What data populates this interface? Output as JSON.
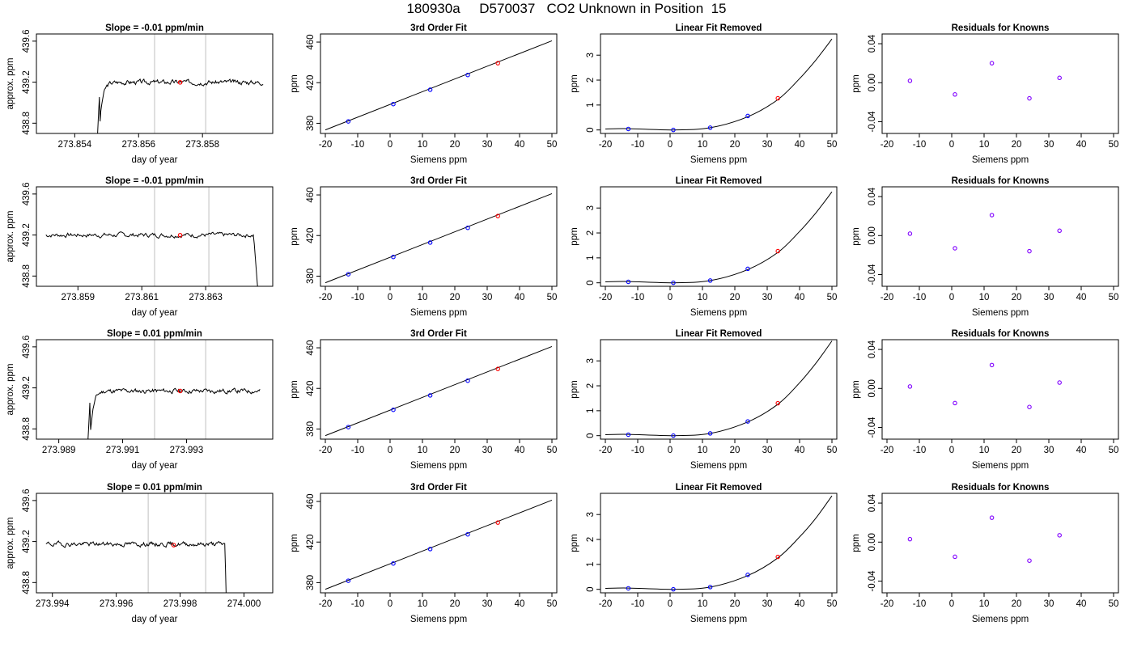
{
  "header": {
    "title": "180930a     D570037   CO2 Unknown in Position  15"
  },
  "colors": {
    "line": "#000000",
    "known_pt": "#0000ff",
    "unknown_pt": "#ff0000",
    "resid_pt": "#8000ff",
    "vline": "#bfbfbf"
  },
  "chart_data": [
    {
      "type": "line",
      "title": "Slope =  -0.01  ppm/min",
      "xlabel": "day of year",
      "ylabel": "approx. ppm",
      "xlim": [
        273.8528,
        273.8602
      ],
      "ylim": [
        438.7,
        439.67
      ],
      "xticks": [
        273.854,
        273.856,
        273.858
      ],
      "xtick_labels": [
        "273.854",
        "273.856",
        "273.858"
      ],
      "yticks": [
        438.8,
        439.2,
        439.6
      ],
      "ytick_labels": [
        "438.8",
        "439.2",
        "439.6"
      ],
      "vlines": [
        273.8565,
        273.8581
      ],
      "marker": [
        273.8573,
        439.198
      ],
      "trace": {
        "start": 273.8547,
        "end": 273.8599,
        "shape": "rise",
        "drop_at": null,
        "level": 439.2,
        "seed": 3
      }
    },
    {
      "type": "line",
      "title": "3rd Order Fit",
      "xlabel": "Siemens ppm",
      "ylabel": "ppm",
      "xlim": [
        -21.5,
        51.5
      ],
      "ylim": [
        370,
        468
      ],
      "xticks": [
        -20,
        -10,
        0,
        10,
        20,
        30,
        40,
        50
      ],
      "xtick_labels": [
        "-20",
        "-10",
        "0",
        "10",
        "20",
        "30",
        "40",
        "50"
      ],
      "yticks": [
        380,
        420,
        460
      ],
      "ytick_labels": [
        "380",
        "420",
        "460"
      ],
      "x": [
        -12.9,
        1.0,
        12.4,
        24.0,
        33.3
      ],
      "y": [
        381.9,
        398.9,
        413.1,
        427.6,
        439.2
      ],
      "fit_x": [
        -20,
        50
      ],
      "fit_y": [
        373.5,
        461.3
      ],
      "unknown_index": 4
    },
    {
      "type": "line",
      "title": "Linear Fit Removed",
      "xlabel": "Siemens ppm",
      "ylabel": "ppm",
      "xlim": [
        -21.5,
        51.5
      ],
      "ylim": [
        -0.14,
        3.85
      ],
      "xticks": [
        -20,
        -10,
        0,
        10,
        20,
        30,
        40,
        50
      ],
      "xtick_labels": [
        "-20",
        "-10",
        "0",
        "10",
        "20",
        "30",
        "40",
        "50"
      ],
      "yticks": [
        0,
        1,
        2,
        3
      ],
      "ytick_labels": [
        "0",
        "1",
        "2",
        "3"
      ],
      "x": [
        -12.9,
        1.0,
        12.4,
        24.0,
        33.3
      ],
      "y": [
        0.04,
        0.0,
        0.09,
        0.56,
        1.27
      ],
      "curve_x": [
        -20,
        -12.9,
        1.0,
        12.4,
        24.0,
        33.3,
        40,
        45,
        50
      ],
      "curve_y": [
        0.04,
        0.05,
        0.0,
        0.09,
        0.53,
        1.22,
        2.06,
        2.8,
        3.65
      ],
      "unknown_index": 4
    },
    {
      "type": "scatter",
      "title": "Residuals for Knowns",
      "xlabel": "Siemens ppm",
      "ylabel": "ppm",
      "xlim": [
        -21.5,
        51.5
      ],
      "ylim": [
        -0.052,
        0.05
      ],
      "xticks": [
        -20,
        -10,
        0,
        10,
        20,
        30,
        40,
        50
      ],
      "xtick_labels": [
        "-20",
        "-10",
        "0",
        "10",
        "20",
        "30",
        "40",
        "50"
      ],
      "yticks": [
        -0.04,
        0.0,
        0.04
      ],
      "ytick_labels": [
        "-0.04",
        "0.00",
        "0.04"
      ],
      "x": [
        -12.9,
        1.0,
        12.4,
        24.0,
        33.3
      ],
      "y": [
        0.002,
        -0.012,
        0.02,
        -0.016,
        0.005
      ]
    },
    {
      "type": "line",
      "title": "Slope =  -0.01  ppm/min",
      "xlabel": "day of year",
      "ylabel": "approx. ppm",
      "xlim": [
        273.8577,
        273.8651
      ],
      "ylim": [
        438.7,
        439.67
      ],
      "xticks": [
        273.859,
        273.861,
        273.863
      ],
      "xtick_labels": [
        "273.859",
        "273.861",
        "273.863"
      ],
      "yticks": [
        438.8,
        439.2,
        439.6
      ],
      "ytick_labels": [
        "438.8",
        "439.2",
        "439.6"
      ],
      "vlines": [
        273.8614,
        273.8631
      ],
      "marker": [
        273.8622,
        439.198
      ],
      "trace": {
        "start": 273.858,
        "end": 273.8648,
        "shape": "drop",
        "drop_at": 273.8645,
        "level": 439.2,
        "seed": 7
      }
    },
    {
      "type": "line",
      "title": "3rd Order Fit",
      "xlabel": "Siemens ppm",
      "ylabel": "ppm",
      "xlim": [
        -21.5,
        51.5
      ],
      "ylim": [
        370,
        468
      ],
      "xticks": [
        -20,
        -10,
        0,
        10,
        20,
        30,
        40,
        50
      ],
      "xtick_labels": [
        "-20",
        "-10",
        "0",
        "10",
        "20",
        "30",
        "40",
        "50"
      ],
      "yticks": [
        380,
        420,
        460
      ],
      "ytick_labels": [
        "380",
        "420",
        "460"
      ],
      "x": [
        -12.9,
        1.0,
        12.4,
        24.0,
        33.3
      ],
      "y": [
        381.9,
        398.9,
        413.1,
        427.6,
        439.2
      ],
      "fit_x": [
        -20,
        50
      ],
      "fit_y": [
        373.5,
        461.3
      ],
      "unknown_index": 4
    },
    {
      "type": "line",
      "title": "Linear Fit Removed",
      "xlabel": "Siemens ppm",
      "ylabel": "ppm",
      "xlim": [
        -21.5,
        51.5
      ],
      "ylim": [
        -0.14,
        3.85
      ],
      "xticks": [
        -20,
        -10,
        0,
        10,
        20,
        30,
        40,
        50
      ],
      "xtick_labels": [
        "-20",
        "-10",
        "0",
        "10",
        "20",
        "30",
        "40",
        "50"
      ],
      "yticks": [
        0,
        1,
        2,
        3
      ],
      "ytick_labels": [
        "0",
        "1",
        "2",
        "3"
      ],
      "x": [
        -12.9,
        1.0,
        12.4,
        24.0,
        33.3
      ],
      "y": [
        0.04,
        0.0,
        0.09,
        0.56,
        1.27
      ],
      "curve_x": [
        -20,
        -12.9,
        1.0,
        12.4,
        24.0,
        33.3,
        40,
        45,
        50
      ],
      "curve_y": [
        0.04,
        0.05,
        0.0,
        0.09,
        0.53,
        1.22,
        2.06,
        2.8,
        3.65
      ],
      "unknown_index": 4
    },
    {
      "type": "scatter",
      "title": "Residuals for Knowns",
      "xlabel": "Siemens ppm",
      "ylabel": "ppm",
      "xlim": [
        -21.5,
        51.5
      ],
      "ylim": [
        -0.052,
        0.05
      ],
      "xticks": [
        -20,
        -10,
        0,
        10,
        20,
        30,
        40,
        50
      ],
      "xtick_labels": [
        "-20",
        "-10",
        "0",
        "10",
        "20",
        "30",
        "40",
        "50"
      ],
      "yticks": [
        -0.04,
        0.0,
        0.04
      ],
      "ytick_labels": [
        "-0.04",
        "0.00",
        "0.04"
      ],
      "x": [
        -12.9,
        1.0,
        12.4,
        24.0,
        33.3
      ],
      "y": [
        0.002,
        -0.013,
        0.021,
        -0.016,
        0.005
      ]
    },
    {
      "type": "line",
      "title": "Slope =  0.01  ppm/min",
      "xlabel": "day of year",
      "ylabel": "approx. ppm",
      "xlim": [
        273.9883,
        273.9957
      ],
      "ylim": [
        438.7,
        439.67
      ],
      "xticks": [
        273.989,
        273.991,
        273.993
      ],
      "xtick_labels": [
        "273.989",
        "273.991",
        "273.993"
      ],
      "yticks": [
        438.8,
        439.2,
        439.6
      ],
      "ytick_labels": [
        "438.8",
        "439.2",
        "439.6"
      ],
      "vlines": [
        273.992,
        273.9936
      ],
      "marker": [
        273.9928,
        439.17
      ],
      "trace": {
        "start": 273.9899,
        "end": 273.9953,
        "shape": "rise",
        "drop_at": null,
        "level": 439.17,
        "seed": 11
      }
    },
    {
      "type": "line",
      "title": "3rd Order Fit",
      "xlabel": "Siemens ppm",
      "ylabel": "ppm",
      "xlim": [
        -21.5,
        51.5
      ],
      "ylim": [
        370,
        468
      ],
      "xticks": [
        -20,
        -10,
        0,
        10,
        20,
        30,
        40,
        50
      ],
      "xtick_labels": [
        "-20",
        "-10",
        "0",
        "10",
        "20",
        "30",
        "40",
        "50"
      ],
      "yticks": [
        380,
        420,
        460
      ],
      "ytick_labels": [
        "380",
        "420",
        "460"
      ],
      "x": [
        -12.9,
        1.0,
        12.4,
        24.0,
        33.3
      ],
      "y": [
        381.9,
        398.9,
        413.1,
        427.6,
        439.2
      ],
      "fit_x": [
        -20,
        50
      ],
      "fit_y": [
        373.5,
        461.3
      ],
      "unknown_index": 4
    },
    {
      "type": "line",
      "title": "Linear Fit Removed",
      "xlabel": "Siemens ppm",
      "ylabel": "ppm",
      "xlim": [
        -21.5,
        51.5
      ],
      "ylim": [
        -0.14,
        3.85
      ],
      "xticks": [
        -20,
        -10,
        0,
        10,
        20,
        30,
        40,
        50
      ],
      "xtick_labels": [
        "-20",
        "-10",
        "0",
        "10",
        "20",
        "30",
        "40",
        "50"
      ],
      "yticks": [
        0,
        1,
        2,
        3
      ],
      "ytick_labels": [
        "0",
        "1",
        "2",
        "3"
      ],
      "x": [
        -12.9,
        1.0,
        12.4,
        24.0,
        33.3
      ],
      "y": [
        0.04,
        0.0,
        0.09,
        0.57,
        1.3
      ],
      "curve_x": [
        -20,
        -12.9,
        1.0,
        12.4,
        24.0,
        33.3,
        40,
        45,
        50
      ],
      "curve_y": [
        0.04,
        0.05,
        0.0,
        0.09,
        0.55,
        1.26,
        2.12,
        2.9,
        3.8
      ],
      "unknown_index": 4
    },
    {
      "type": "scatter",
      "title": "Residuals for Knowns",
      "xlabel": "Siemens ppm",
      "ylabel": "ppm",
      "xlim": [
        -21.5,
        51.5
      ],
      "ylim": [
        -0.052,
        0.05
      ],
      "xticks": [
        -20,
        -10,
        0,
        10,
        20,
        30,
        40,
        50
      ],
      "xtick_labels": [
        "-20",
        "-10",
        "0",
        "10",
        "20",
        "30",
        "40",
        "50"
      ],
      "yticks": [
        -0.04,
        0.0,
        0.04
      ],
      "ytick_labels": [
        "-0.04",
        "0.00",
        "0.04"
      ],
      "x": [
        -12.9,
        1.0,
        12.4,
        24.0,
        33.3
      ],
      "y": [
        0.002,
        -0.015,
        0.024,
        -0.019,
        0.006
      ]
    },
    {
      "type": "line",
      "title": "Slope =  0.01  ppm/min",
      "xlabel": "day of year",
      "ylabel": "approx. ppm",
      "xlim": [
        273.9935,
        274.0009
      ],
      "ylim": [
        438.7,
        439.67
      ],
      "xticks": [
        273.994,
        273.996,
        273.998,
        274.0
      ],
      "xtick_labels": [
        "273.994",
        "273.996",
        "273.998",
        "274.000"
      ],
      "yticks": [
        438.8,
        439.2,
        439.6
      ],
      "ytick_labels": [
        "438.8",
        "439.2",
        "439.6"
      ],
      "vlines": [
        273.997,
        273.9988
      ],
      "marker": [
        273.9978,
        439.165
      ],
      "trace": {
        "start": 273.9938,
        "end": 273.9995,
        "shape": "drop",
        "drop_at": 273.9994,
        "level": 439.175,
        "seed": 19
      }
    },
    {
      "type": "line",
      "title": "3rd Order Fit",
      "xlabel": "Siemens ppm",
      "ylabel": "ppm",
      "xlim": [
        -21.5,
        51.5
      ],
      "ylim": [
        370,
        468
      ],
      "xticks": [
        -20,
        -10,
        0,
        10,
        20,
        30,
        40,
        50
      ],
      "xtick_labels": [
        "-20",
        "-10",
        "0",
        "10",
        "20",
        "30",
        "40",
        "50"
      ],
      "yticks": [
        380,
        420,
        460
      ],
      "ytick_labels": [
        "380",
        "420",
        "460"
      ],
      "x": [
        -12.9,
        1.0,
        12.4,
        24.0,
        33.3
      ],
      "y": [
        381.9,
        398.9,
        413.1,
        427.6,
        439.2
      ],
      "fit_x": [
        -20,
        50
      ],
      "fit_y": [
        373.5,
        461.3
      ],
      "unknown_index": 4
    },
    {
      "type": "line",
      "title": "Linear Fit Removed",
      "xlabel": "Siemens ppm",
      "ylabel": "ppm",
      "xlim": [
        -21.5,
        51.5
      ],
      "ylim": [
        -0.14,
        3.85
      ],
      "xticks": [
        -20,
        -10,
        0,
        10,
        20,
        30,
        40,
        50
      ],
      "xtick_labels": [
        "-20",
        "-10",
        "0",
        "10",
        "20",
        "30",
        "40",
        "50"
      ],
      "yticks": [
        0,
        1,
        2,
        3
      ],
      "ytick_labels": [
        "0",
        "1",
        "2",
        "3"
      ],
      "x": [
        -12.9,
        1.0,
        12.4,
        24.0,
        33.3
      ],
      "y": [
        0.04,
        0.0,
        0.09,
        0.58,
        1.3
      ],
      "curve_x": [
        -20,
        -12.9,
        1.0,
        12.4,
        24.0,
        33.3,
        40,
        45,
        50
      ],
      "curve_y": [
        0.04,
        0.05,
        0.0,
        0.09,
        0.55,
        1.26,
        2.1,
        2.85,
        3.75
      ],
      "unknown_index": 4
    },
    {
      "type": "scatter",
      "title": "Residuals for Knowns",
      "xlabel": "Siemens ppm",
      "ylabel": "ppm",
      "xlim": [
        -21.5,
        51.5
      ],
      "ylim": [
        -0.052,
        0.05
      ],
      "xticks": [
        -20,
        -10,
        0,
        10,
        20,
        30,
        40,
        50
      ],
      "xtick_labels": [
        "-20",
        "-10",
        "0",
        "10",
        "20",
        "30",
        "40",
        "50"
      ],
      "yticks": [
        -0.04,
        0.0,
        0.04
      ],
      "ytick_labels": [
        "-0.04",
        "0.00",
        "0.04"
      ],
      "x": [
        -12.9,
        1.0,
        12.4,
        24.0,
        33.3
      ],
      "y": [
        0.003,
        -0.015,
        0.025,
        -0.019,
        0.007
      ]
    }
  ]
}
